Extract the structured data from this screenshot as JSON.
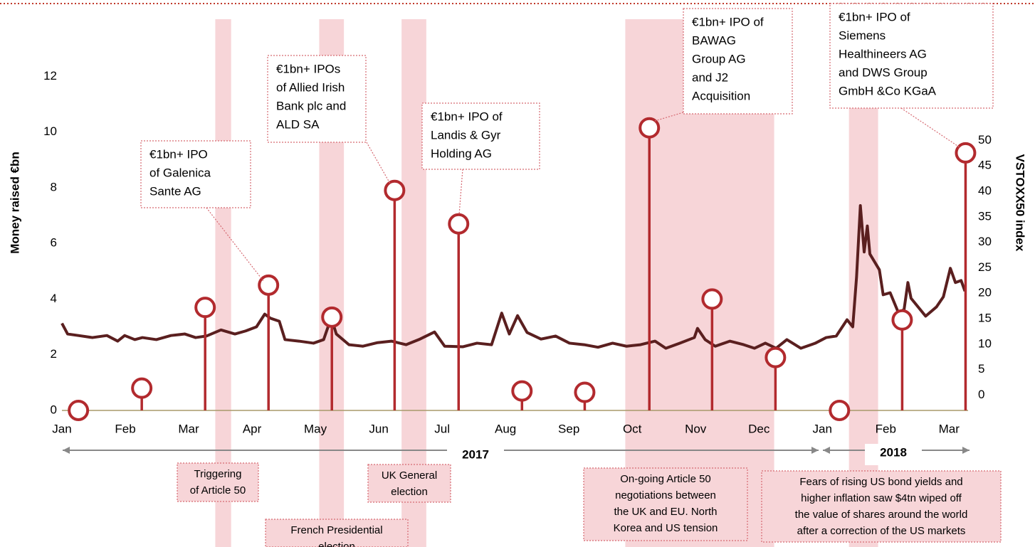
{
  "chart_data": {
    "type": "lollipop-line",
    "ylabel": "Money raised €bn",
    "y2label": "VSTOXX50 index",
    "xlim": [
      0,
      14.3
    ],
    "xticks": [
      {
        "value": 0,
        "label": "Jan"
      },
      {
        "value": 1,
        "label": "Feb"
      },
      {
        "value": 2,
        "label": "Mar"
      },
      {
        "value": 3,
        "label": "Apr"
      },
      {
        "value": 4,
        "label": "May"
      },
      {
        "value": 5,
        "label": "Jun"
      },
      {
        "value": 6,
        "label": "Jul"
      },
      {
        "value": 7,
        "label": "Aug"
      },
      {
        "value": 8,
        "label": "Sep"
      },
      {
        "value": 9,
        "label": "Oct"
      },
      {
        "value": 10,
        "label": "Nov"
      },
      {
        "value": 11,
        "label": "Dec"
      },
      {
        "value": 12,
        "label": "Jan"
      },
      {
        "value": 13,
        "label": "Feb"
      },
      {
        "value": 14,
        "label": "Mar"
      }
    ],
    "ylim": [
      0,
      14
    ],
    "yticks": [
      0,
      2,
      4,
      6,
      8,
      10,
      12
    ],
    "y2lim": [
      -3,
      73.5
    ],
    "y2ticks": [
      0,
      5,
      10,
      15,
      20,
      25,
      30,
      35,
      40,
      45,
      50
    ],
    "years": [
      "2017",
      "2018"
    ],
    "series": [
      {
        "type": "lollipop",
        "color": "#b22a2e",
        "x": [
          0.26,
          1.26,
          2.26,
          3.26,
          4.26,
          5.25,
          6.26,
          7.26,
          8.25,
          9.27,
          10.26,
          11.26,
          12.27,
          13.26,
          14.26
        ],
        "values": [
          0,
          0.8,
          3.7,
          4.5,
          3.35,
          7.9,
          6.7,
          0.7,
          0.65,
          10.15,
          4.0,
          1.9,
          0,
          3.25,
          9.25
        ]
      },
      {
        "type": "line",
        "axis": "y2",
        "color": "#5a1f1f",
        "x": [
          0,
          0.09,
          0.26,
          0.48,
          0.71,
          0.88,
          0.99,
          1.15,
          1.27,
          1.49,
          1.72,
          1.94,
          2.11,
          2.28,
          2.51,
          2.73,
          2.9,
          3.07,
          3.2,
          3.29,
          3.43,
          3.52,
          3.74,
          3.97,
          4.13,
          4.25,
          4.33,
          4.53,
          4.75,
          4.98,
          5.2,
          5.43,
          5.65,
          5.88,
          6.04,
          6.33,
          6.55,
          6.78,
          6.94,
          7.06,
          7.19,
          7.34,
          7.56,
          7.79,
          8.01,
          8.24,
          8.46,
          8.69,
          8.91,
          9.13,
          9.36,
          9.53,
          9.75,
          9.98,
          10.03,
          10.15,
          10.31,
          10.54,
          10.76,
          10.93,
          11.1,
          11.27,
          11.44,
          11.66,
          11.89,
          12.06,
          12.22,
          12.39,
          12.48,
          12.54,
          12.6,
          12.66,
          12.71,
          12.75,
          12.9,
          12.96,
          13.07,
          13.2,
          13.29,
          13.35,
          13.4,
          13.63,
          13.8,
          13.91,
          14.02,
          14.1,
          14.19,
          14.25
        ],
        "values": [
          14.1,
          12,
          11.7,
          11.3,
          11.7,
          10.6,
          11.7,
          10.9,
          11.3,
          10.9,
          11.7,
          12,
          11.3,
          11.6,
          12.8,
          12,
          12.6,
          13.4,
          15.9,
          15.1,
          14.5,
          10.9,
          10.6,
          10.2,
          10.9,
          15.2,
          12,
          9.9,
          9.6,
          10.3,
          10.6,
          9.9,
          11,
          12.4,
          9.6,
          9.5,
          10.2,
          9.9,
          16.1,
          12,
          15.6,
          12.3,
          11,
          11.6,
          10.2,
          9.9,
          9.4,
          10.2,
          9.6,
          9.9,
          10.6,
          9.2,
          10.2,
          11.3,
          13.1,
          10.9,
          9.6,
          10.6,
          9.9,
          9.2,
          10.2,
          9.2,
          10.9,
          9.2,
          10.2,
          11.3,
          11.6,
          14.8,
          13.4,
          23.2,
          37.2,
          28.1,
          33.2,
          27.7,
          24.6,
          19.7,
          20.1,
          16.2,
          16.8,
          22.1,
          19,
          15.5,
          17.3,
          19.3,
          24.9,
          22.1,
          22.5,
          20.4
        ]
      }
    ],
    "bands": {
      "color": "#f7d5d8",
      "ranges": [
        [
          2.42,
          2.67
        ],
        [
          4.06,
          4.45
        ],
        [
          5.36,
          5.75
        ],
        [
          8.89,
          11.24
        ],
        [
          12.42,
          12.88
        ]
      ]
    },
    "annotations": [
      [
        "€1bn+ IPO",
        "of Galenica",
        "Sante AG"
      ],
      [
        "€1bn+ IPOs",
        "of Allied Irish",
        "Bank plc and",
        "ALD SA"
      ],
      [
        "€1bn+ IPO of",
        "Landis & Gyr",
        "Holding AG"
      ],
      [
        "€1bn+ IPO of",
        "BAWAG",
        "Group AG",
        "and J2",
        "Acquisition"
      ],
      [
        "€1bn+ IPO of",
        "Siemens",
        "Healthineers AG",
        "and DWS Group",
        "GmbH &Co KGaA"
      ]
    ],
    "band_labels": [
      [
        "Triggering",
        "of Article 50"
      ],
      [
        "French Presidential",
        "election"
      ],
      [
        "UK General",
        "election"
      ],
      [
        "On-going Article 50",
        "negotiations between",
        "the UK and EU. North",
        "Korea and US tension"
      ],
      [
        "Fears of rising US bond yields and",
        "higher inflation saw $4tn wiped off",
        "the value of shares around the world",
        "after a correction of the US markets"
      ]
    ]
  }
}
